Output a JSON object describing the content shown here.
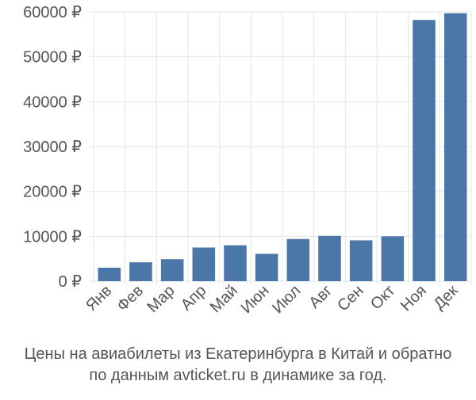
{
  "chart_data": {
    "type": "bar",
    "categories": [
      "Янв",
      "Фев",
      "Мар",
      "Апр",
      "Май",
      "Июн",
      "Июл",
      "Авг",
      "Сен",
      "Окт",
      "Ноя",
      "Дек"
    ],
    "values": [
      3000,
      4200,
      4900,
      7500,
      8000,
      6100,
      9400,
      10100,
      9100,
      10000,
      58200,
      59700
    ],
    "ylim": [
      0,
      60000
    ],
    "yticks": [
      0,
      10000,
      20000,
      30000,
      40000,
      50000,
      60000
    ],
    "ytick_labels": [
      "0 ₽",
      "10000 ₽",
      "20000 ₽",
      "30000 ₽",
      "40000 ₽",
      "50000 ₽",
      "60000 ₽"
    ],
    "bar_color": "#4a76a8",
    "grid_color": "#e6e6e6",
    "grid": true
  },
  "caption": {
    "line1": "Цены на авиабилеты из Екатеринбурга в Китай и обратно",
    "line2": "по данным avticket.ru в динамике за год."
  }
}
